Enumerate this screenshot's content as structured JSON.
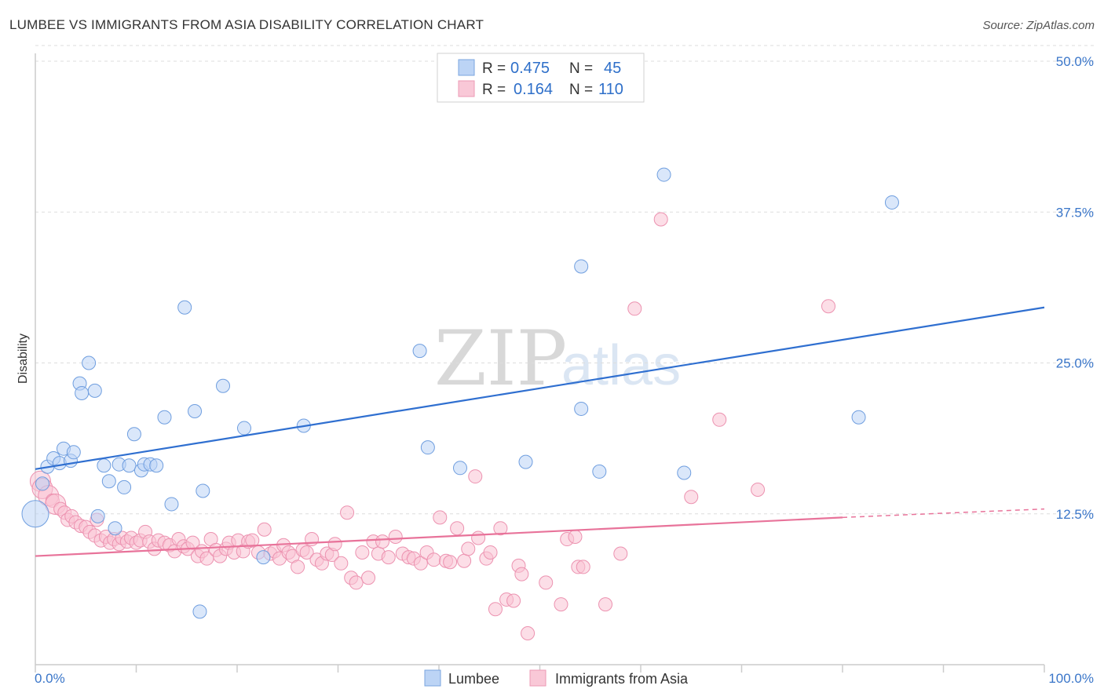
{
  "title": "LUMBEE VS IMMIGRANTS FROM ASIA DISABILITY CORRELATION CHART",
  "source": "Source: ZipAtlas.com",
  "watermark": {
    "zip": "ZIP",
    "atlas": "atlas"
  },
  "legend": {
    "rows": [
      {
        "r_label": "R =",
        "r_value": "0.475",
        "n_label": "N =",
        "n_value": "45"
      },
      {
        "r_label": "R =",
        "r_value": "0.164",
        "n_label": "N =",
        "n_value": "110"
      }
    ]
  },
  "bottom_legend": [
    "Lumbee",
    "Immigrants from Asia"
  ],
  "chart_data": {
    "type": "scatter",
    "title": "LUMBEE VS IMMIGRANTS FROM ASIA DISABILITY CORRELATION CHART",
    "xlabel": "",
    "ylabel": "Disability",
    "xlim": [
      0,
      100
    ],
    "ylim": [
      0,
      50
    ],
    "x_tick_labels": [
      "0.0%",
      "100.0%"
    ],
    "y_ticks": [
      12.5,
      25.0,
      37.5,
      50.0
    ],
    "y_tick_labels": [
      "12.5%",
      "25.0%",
      "37.5%",
      "50.0%"
    ],
    "grid": true,
    "legend_position": "top-center",
    "colors": {
      "Lumbee": "#a9c8ef",
      "Immigrants from Asia": "#f5b8cb",
      "Lumbee_line": "#2f6fd0",
      "Immigrants_line": "#e8739a"
    },
    "series": [
      {
        "name": "Lumbee",
        "R": 0.475,
        "N": 45,
        "trend": {
          "x": [
            0,
            100
          ],
          "y": [
            16.2,
            29.6
          ]
        },
        "points": [
          [
            0,
            12.5,
            3
          ],
          [
            0.7,
            15.0,
            1
          ],
          [
            1.2,
            16.4,
            1
          ],
          [
            1.8,
            17.1,
            1
          ],
          [
            2.4,
            16.7,
            1
          ],
          [
            2.8,
            17.9,
            1
          ],
          [
            3.5,
            16.9,
            1
          ],
          [
            3.8,
            17.6,
            1
          ],
          [
            4.4,
            23.3,
            1
          ],
          [
            4.6,
            22.5,
            1
          ],
          [
            5.3,
            25.0,
            1
          ],
          [
            5.9,
            22.7,
            1
          ],
          [
            6.2,
            12.3,
            1
          ],
          [
            6.8,
            16.5,
            1
          ],
          [
            7.3,
            15.2,
            1
          ],
          [
            7.9,
            11.3,
            1
          ],
          [
            8.3,
            16.6,
            1
          ],
          [
            8.8,
            14.7,
            1
          ],
          [
            9.3,
            16.5,
            1
          ],
          [
            9.8,
            19.1,
            1
          ],
          [
            10.5,
            16.1,
            1
          ],
          [
            10.8,
            16.6,
            1
          ],
          [
            11.4,
            16.6,
            1
          ],
          [
            12.0,
            16.5,
            1
          ],
          [
            12.8,
            20.5,
            1
          ],
          [
            13.5,
            13.3,
            1
          ],
          [
            14.8,
            29.6,
            1
          ],
          [
            15.8,
            21.0,
            1
          ],
          [
            16.3,
            4.4,
            1
          ],
          [
            16.6,
            14.4,
            1
          ],
          [
            18.6,
            23.1,
            1
          ],
          [
            20.7,
            19.6,
            1
          ],
          [
            22.6,
            8.9,
            1
          ],
          [
            26.6,
            19.8,
            1
          ],
          [
            38.1,
            26.0,
            1
          ],
          [
            38.9,
            18.0,
            1
          ],
          [
            42.1,
            16.3,
            1
          ],
          [
            48.6,
            16.8,
            1
          ],
          [
            54.1,
            33.0,
            1
          ],
          [
            54.1,
            21.2,
            1
          ],
          [
            55.9,
            16.0,
            1
          ],
          [
            62.3,
            40.6,
            1
          ],
          [
            64.3,
            15.9,
            1
          ],
          [
            81.6,
            20.5,
            1
          ],
          [
            84.9,
            38.3,
            1
          ]
        ]
      },
      {
        "name": "Immigrants from Asia",
        "R": 0.164,
        "N": 110,
        "trend": {
          "x": [
            0,
            80
          ],
          "y": [
            9.0,
            12.2
          ]
        },
        "trend_dashed": {
          "x": [
            80,
            100
          ],
          "y": [
            12.2,
            12.9
          ]
        },
        "points": [
          [
            0.5,
            15.2,
            2
          ],
          [
            0.7,
            14.6,
            2
          ],
          [
            1.3,
            14.0,
            2
          ],
          [
            1.7,
            13.6,
            1
          ],
          [
            2.0,
            13.3,
            2
          ],
          [
            2.5,
            12.9,
            1
          ],
          [
            2.9,
            12.6,
            1
          ],
          [
            3.2,
            12.0,
            1
          ],
          [
            3.6,
            12.3,
            1
          ],
          [
            4.0,
            11.8,
            1
          ],
          [
            4.5,
            11.5,
            1
          ],
          [
            5.0,
            11.4,
            1
          ],
          [
            5.4,
            11.0,
            1
          ],
          [
            5.9,
            10.7,
            1
          ],
          [
            6.1,
            12.0,
            1
          ],
          [
            6.5,
            10.3,
            1
          ],
          [
            7.0,
            10.6,
            1
          ],
          [
            7.4,
            10.1,
            1
          ],
          [
            7.8,
            10.4,
            1
          ],
          [
            8.3,
            10.0,
            1
          ],
          [
            8.6,
            10.5,
            1
          ],
          [
            9.1,
            10.2,
            1
          ],
          [
            9.5,
            10.5,
            1
          ],
          [
            10.0,
            10.1,
            1
          ],
          [
            10.4,
            10.3,
            1
          ],
          [
            10.9,
            11.0,
            1
          ],
          [
            11.3,
            10.2,
            1
          ],
          [
            11.8,
            9.6,
            1
          ],
          [
            12.2,
            10.3,
            1
          ],
          [
            12.8,
            10.1,
            1
          ],
          [
            13.3,
            9.9,
            1
          ],
          [
            13.8,
            9.4,
            1
          ],
          [
            14.2,
            10.4,
            1
          ],
          [
            14.7,
            9.8,
            1
          ],
          [
            15.1,
            9.6,
            1
          ],
          [
            15.6,
            10.1,
            1
          ],
          [
            16.1,
            9.0,
            1
          ],
          [
            16.5,
            9.4,
            1
          ],
          [
            17.0,
            8.8,
            1
          ],
          [
            17.4,
            10.4,
            1
          ],
          [
            17.9,
            9.5,
            1
          ],
          [
            18.3,
            9.0,
            1
          ],
          [
            18.9,
            9.6,
            1
          ],
          [
            19.2,
            10.1,
            1
          ],
          [
            19.7,
            9.3,
            1
          ],
          [
            20.1,
            10.3,
            1
          ],
          [
            20.6,
            9.4,
            1
          ],
          [
            21.1,
            10.2,
            1
          ],
          [
            21.5,
            10.3,
            1
          ],
          [
            22.1,
            9.3,
            1
          ],
          [
            22.7,
            11.2,
            1
          ],
          [
            23.3,
            9.2,
            1
          ],
          [
            23.7,
            9.4,
            1
          ],
          [
            24.2,
            8.8,
            1
          ],
          [
            24.6,
            9.9,
            1
          ],
          [
            25.1,
            9.3,
            1
          ],
          [
            25.5,
            9.0,
            1
          ],
          [
            26.0,
            8.1,
            1
          ],
          [
            26.5,
            9.5,
            1
          ],
          [
            26.9,
            9.3,
            1
          ],
          [
            27.4,
            10.4,
            1
          ],
          [
            27.9,
            8.7,
            1
          ],
          [
            28.4,
            8.4,
            1
          ],
          [
            28.9,
            9.2,
            1
          ],
          [
            29.4,
            9.1,
            1
          ],
          [
            29.7,
            10.0,
            1
          ],
          [
            30.3,
            8.4,
            1
          ],
          [
            30.9,
            12.6,
            1
          ],
          [
            31.3,
            7.2,
            1
          ],
          [
            31.8,
            6.8,
            1
          ],
          [
            32.4,
            9.3,
            1
          ],
          [
            33.0,
            7.2,
            1
          ],
          [
            33.5,
            10.2,
            1
          ],
          [
            34.0,
            9.2,
            1
          ],
          [
            34.4,
            10.2,
            1
          ],
          [
            35.0,
            8.9,
            1
          ],
          [
            35.7,
            10.6,
            1
          ],
          [
            36.4,
            9.2,
            1
          ],
          [
            37.0,
            8.9,
            1
          ],
          [
            37.5,
            8.8,
            1
          ],
          [
            38.2,
            8.4,
            1
          ],
          [
            38.8,
            9.3,
            1
          ],
          [
            39.5,
            8.7,
            1
          ],
          [
            40.1,
            12.2,
            1
          ],
          [
            40.7,
            8.6,
            1
          ],
          [
            41.1,
            8.5,
            1
          ],
          [
            41.8,
            11.3,
            1
          ],
          [
            42.5,
            8.6,
            1
          ],
          [
            42.9,
            9.6,
            1
          ],
          [
            43.6,
            15.6,
            1
          ],
          [
            43.9,
            10.5,
            1
          ],
          [
            44.7,
            8.8,
            1
          ],
          [
            45.1,
            9.3,
            1
          ],
          [
            45.6,
            4.6,
            1
          ],
          [
            46.1,
            11.3,
            1
          ],
          [
            46.7,
            5.4,
            1
          ],
          [
            47.4,
            5.3,
            1
          ],
          [
            47.9,
            8.2,
            1
          ],
          [
            48.2,
            7.5,
            1
          ],
          [
            48.8,
            2.6,
            1
          ],
          [
            50.6,
            6.8,
            1
          ],
          [
            52.1,
            5.0,
            1
          ],
          [
            52.7,
            10.4,
            1
          ],
          [
            53.5,
            10.6,
            1
          ],
          [
            53.8,
            8.1,
            1
          ],
          [
            54.3,
            8.1,
            1
          ],
          [
            56.5,
            5.0,
            1
          ],
          [
            58.0,
            9.2,
            1
          ],
          [
            59.4,
            29.5,
            1
          ],
          [
            62.0,
            36.9,
            1
          ],
          [
            65.0,
            13.9,
            1
          ],
          [
            67.8,
            20.3,
            1
          ],
          [
            71.6,
            14.5,
            1
          ],
          [
            78.6,
            29.7,
            1
          ]
        ]
      }
    ]
  }
}
